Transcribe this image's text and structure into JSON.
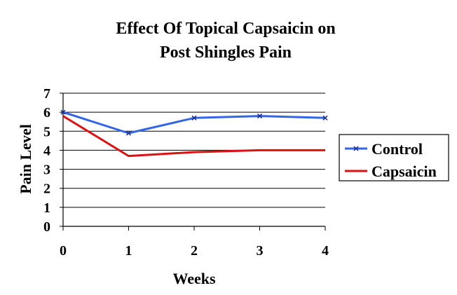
{
  "chart_data": {
    "type": "line",
    "title_lines": [
      "Effect Of Topical Capsaicin on",
      "Post Shingles Pain"
    ],
    "xlabel": "Weeks",
    "ylabel": "Pain Level",
    "x": [
      0,
      1,
      2,
      3,
      4
    ],
    "xlim": [
      0,
      4
    ],
    "ylim": [
      0,
      7
    ],
    "x_ticks": [
      "0",
      "1",
      "2",
      "3",
      "4"
    ],
    "y_ticks": [
      "0",
      "1",
      "2",
      "3",
      "4",
      "5",
      "6",
      "7"
    ],
    "grid": "horizontal",
    "legend_position": "right",
    "series": [
      {
        "name": "Control",
        "values": [
          6.0,
          4.9,
          5.7,
          5.8,
          5.7
        ],
        "color": "#3366e6",
        "marker": "x"
      },
      {
        "name": "Capsaicin",
        "values": [
          5.8,
          3.7,
          3.9,
          4.0,
          4.0
        ],
        "color": "#dd1111",
        "marker": "none"
      }
    ]
  }
}
